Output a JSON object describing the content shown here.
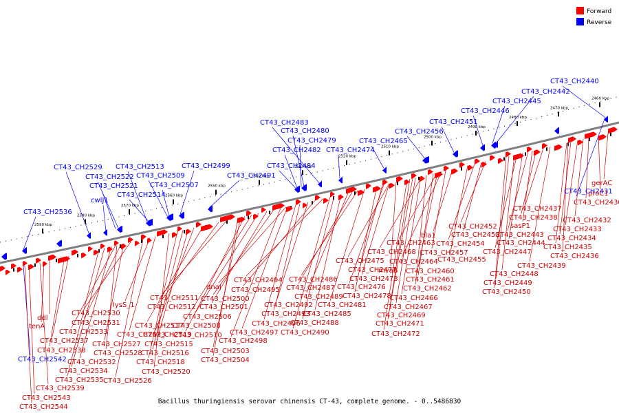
{
  "legend": {
    "forward_label": "Forward",
    "reverse_label": "Reverse",
    "forward_color": "#ff0000",
    "reverse_color": "#0000ff"
  },
  "caption": "Bacillus thuringiensis serovar chinensis CT-43, complete genome. - 0..5486830",
  "backbone_color": "#808080",
  "ticks": [
    "2460 kbp",
    "2470 kbp",
    "2480 kbp",
    "2490 kbp",
    "2500 kbp",
    "2510 kbp",
    "2520 kbp",
    "2530 kbp",
    "2540 kbp",
    "2550 kbp",
    "2560 kbp",
    "2570 kbp",
    "2580 kbp",
    "2590 kbp"
  ],
  "reverse_labels": [
    "CT43_CH2440",
    "CT43_CH2442",
    "CT43_CH2445",
    "CT43_CH2446",
    "CT43_CH2451",
    "CT43_CH2456",
    "CT43_CH2465",
    "CT43_CH2474",
    "CT43_CH2483",
    "CT43_CH2480",
    "CT43_CH2479",
    "CT43_CH2482",
    "CT43_CH2484",
    "CT43_CH2491",
    "CT43_CH2499",
    "CT43_CH2513",
    "CT43_CH2509",
    "CT43_CH2507",
    "CT43_CH2514",
    "CT43_CH2529",
    "CT43_CH2522",
    "CT43_CH2521",
    "cwlJ1",
    "CT43_CH2536",
    "CT43_CH2431",
    "CT43_CH2542"
  ],
  "forward_labels": [
    "gerAC",
    "proC1",
    "CT43_CH2430",
    "CT43_CH2432",
    "CT43_CH2433",
    "CT43_CH2434",
    "CT43_CH2435",
    "CT43_CH2436",
    "CT43_CH2437",
    "CT43_CH2438",
    "sasP1",
    "CT43_CH2443",
    "CT43_CH2444",
    "CT43_CH2447",
    "CT43_CH2439",
    "CT43_CH2448",
    "CT43_CH2449",
    "CT43_CH2450",
    "CT43_CH2452",
    "CT43_CH2453",
    "CT43_CH2454",
    "CT43_CH2455",
    "bla1",
    "CT43_CH2463",
    "CT43_CH2457",
    "CT43_CH2464",
    "CT43_CH2460",
    "CT43_CH2461",
    "CT43_CH2462",
    "CT43_CH2466",
    "CT43_CH2467",
    "CT43_CH2468",
    "CT43_CH2469",
    "CT43_CH2471",
    "CT43_CH2472",
    "CT43_CH2475",
    "mvaB",
    "CT43_CH2477",
    "CT43_CH2473",
    "CT43_CH2476",
    "CT43_CH2478",
    "CT43_CH2481",
    "CT43_CH2486",
    "CT43_CH2487",
    "CT43_CH2489",
    "CT43_CH2485",
    "CT43_CH2488",
    "CT43_CH2490",
    "CT43_CH2494",
    "CT43_CH2495",
    "CT43_CH2492",
    "CT43_CH2493",
    "CT43_CH2496",
    "CT43_CH2497",
    "CT43_CH2498",
    "dnaJ",
    "CT43_CH2500",
    "CT43_CH2501",
    "CT43_CH2506",
    "CT43_CH2508",
    "CT43_CH2510",
    "CT43_CH2503",
    "CT43_CH2504",
    "CT43_CH2511",
    "CT43_CH2512",
    "CT43_CH2517",
    "CT43_CH2519",
    "CT43_CH2515",
    "CT43_CH2516",
    "CT43_CH2518",
    "CT43_CH2520",
    "lysS_1",
    "CT43_CH2523",
    "CT43_CH2526",
    "CT43_CH2530",
    "CT43_CH2531",
    "CT43_CH2533",
    "CT43_CH2527",
    "CT43_CH2528",
    "CT43_CH2532",
    "CT43_CH2534",
    "CT43_CH2535",
    "ddl",
    "tenA",
    "CT43_CH2537",
    "CT43_CH2538",
    "CT43_CH2539",
    "CT43_CH2543",
    "CT43_CH2544"
  ]
}
